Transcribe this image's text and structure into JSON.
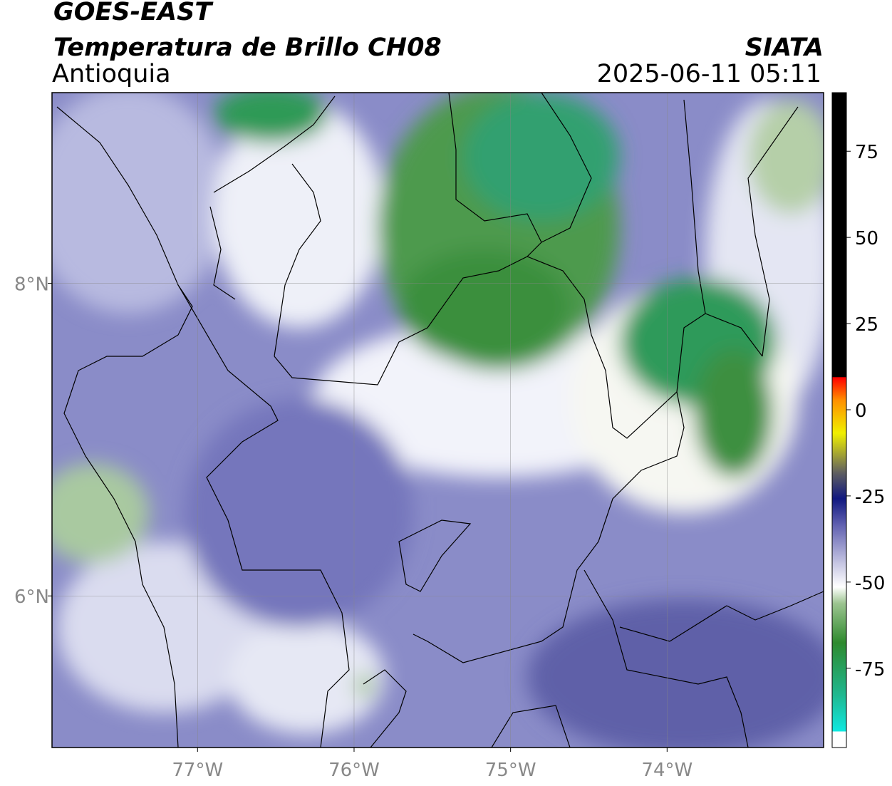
{
  "title": "GOES-EAST",
  "subtitle": "Temperatura de Brillo CH08",
  "region": "Antioquia",
  "source": "SIATA",
  "timestamp": "2025-06-11 05:11",
  "map": {
    "lonlim": [
      -77.93,
      -73.0
    ],
    "latlim": [
      5.03,
      9.22
    ],
    "lonticks": [
      {
        "value": -77,
        "label": "77°W"
      },
      {
        "value": -76,
        "label": "76°W"
      },
      {
        "value": -75,
        "label": "75°W"
      },
      {
        "value": -74,
        "label": "74°W"
      }
    ],
    "latticks": [
      {
        "value": 8,
        "label": "8°N"
      },
      {
        "value": 6,
        "label": "6°N"
      }
    ],
    "grid": true
  },
  "colorbar": {
    "lim": [
      -98,
      92
    ],
    "ticks": [
      75,
      50,
      25,
      0,
      -25,
      -50,
      -75
    ]
  }
}
